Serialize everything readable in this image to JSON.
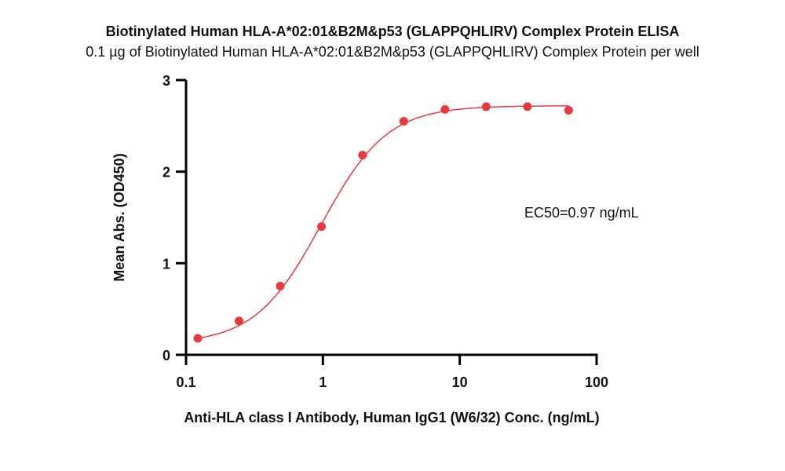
{
  "chart_data": {
    "type": "scatter",
    "title": "Biotinylated Human HLA-A*02:01&B2M&p53 (GLAPPQHLIRV) Complex Protein ELISA",
    "subtitle": "0.1 µg of Biotinylated Human HLA-A*02:01&B2M&p53 (GLAPPQHLIRV) Complex Protein per well",
    "xlabel": "Anti-HLA class I Antibody, Human IgG1 (W6/32) Conc. (ng/mL)",
    "ylabel": "Mean Abs. (OD450)",
    "x_scale": "log",
    "xlim": [
      0.1,
      100
    ],
    "ylim": [
      0,
      3
    ],
    "x_ticks": [
      "0.1",
      "1",
      "10",
      "100"
    ],
    "y_ticks": [
      "0",
      "1",
      "2",
      "3"
    ],
    "grid": false,
    "annotation": "EC50=0.97 ng/mL",
    "color": "#e8393f",
    "x": [
      0.122,
      0.244,
      0.488,
      0.977,
      1.95,
      3.9,
      7.8,
      15.6,
      31.25,
      62.5
    ],
    "y": [
      0.18,
      0.37,
      0.75,
      1.4,
      2.18,
      2.55,
      2.68,
      2.71,
      2.71,
      2.67
    ],
    "fit": "4-parameter logistic curve"
  }
}
